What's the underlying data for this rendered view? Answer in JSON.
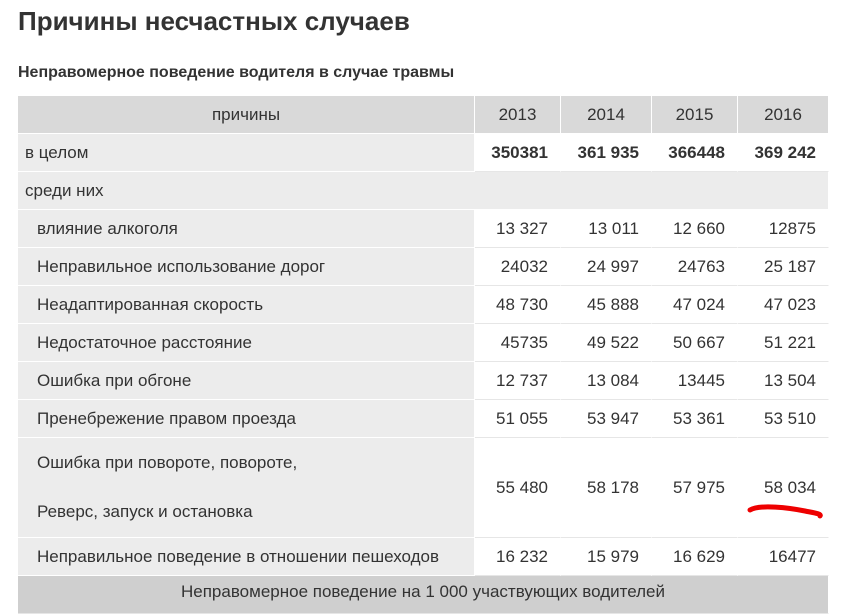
{
  "header": {
    "title": "Причины несчастных случаев",
    "subtitle": "Неправомерное поведение водителя в случае травмы"
  },
  "table": {
    "columns": [
      "причины",
      "2013",
      "2014",
      "2015",
      "2016"
    ],
    "rows": [
      {
        "label": [
          "в целом"
        ],
        "values": [
          "350381",
          "361 935",
          "366448",
          "369 242"
        ]
      },
      {
        "label": [
          "среди них"
        ]
      },
      {
        "label": [
          "влияние алкоголя"
        ],
        "values": [
          "13 327",
          "13 011",
          "12 660",
          "12875"
        ]
      },
      {
        "label": [
          "Неправильное использование дорог"
        ],
        "values": [
          "24032",
          "24 997",
          "24763",
          "25 187"
        ]
      },
      {
        "label": [
          "Неадаптированная скорость"
        ],
        "values": [
          "48 730",
          "45 888",
          "47 024",
          "47 023"
        ]
      },
      {
        "label": [
          "Недостаточное расстояние"
        ],
        "values": [
          "45735",
          "49 522",
          "50 667",
          "51 221"
        ]
      },
      {
        "label": [
          "Ошибка при обгоне"
        ],
        "values": [
          "12 737",
          "13 084",
          "13445",
          "13 504"
        ]
      },
      {
        "label": [
          "Пренебрежение правом проезда"
        ],
        "values": [
          "51 055",
          "53 947",
          "53 361",
          "53 510"
        ]
      },
      {
        "label": [
          "Ошибка при повороте, повороте,",
          "Реверс, запуск и остановка"
        ],
        "values": [
          "55 480",
          "58 178",
          "57 975",
          "58 034"
        ]
      },
      {
        "label": [
          "Неправильное поведение в отношении пешеходов"
        ],
        "values": [
          "16 232",
          "15 979",
          "16 629",
          "16477"
        ]
      }
    ],
    "footer": "Неправомерное поведение на 1 000 участвующих водителей"
  }
}
